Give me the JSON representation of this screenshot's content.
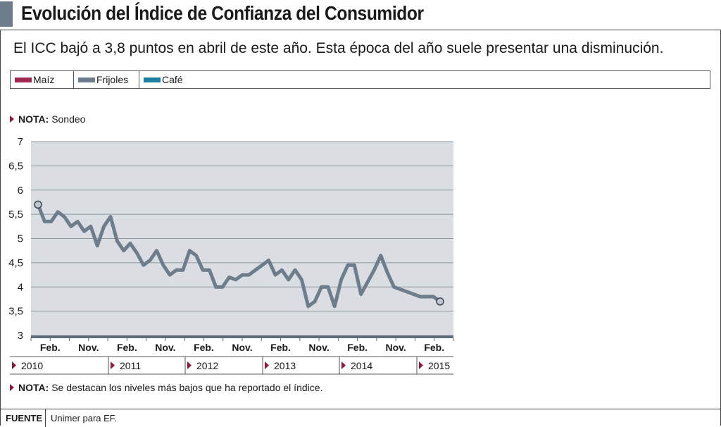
{
  "title": "Evolución del Índice de Confianza del Consumidor",
  "subtitle": "El ICC bajó a 3,8 puntos en abril de este año. Esta época del año suele presentar una disminución.",
  "legend": [
    {
      "label": "Maíz",
      "color": "#a0284f"
    },
    {
      "label": "Frijoles",
      "color": "#6e7d8c"
    },
    {
      "label": "Café",
      "color": "#1b7fa3"
    }
  ],
  "note_top": {
    "key": "NOTA:",
    "text": "Sondeo"
  },
  "note_bottom": {
    "key": "NOTA:",
    "text": "Se destacan los niveles más bajos que ha reportado el índice."
  },
  "source": {
    "key": "FUENTE",
    "text": "Unimer para EF."
  },
  "colors": {
    "line": "#6e7d8c",
    "plot_bg": "#dadde1",
    "axis": "#5a6b7b",
    "accent": "#8b1a3a"
  },
  "chart_data": {
    "type": "line",
    "ylim": [
      3,
      7
    ],
    "yticks": [
      "3",
      "3,5",
      "4",
      "4,5",
      "5",
      "5,5",
      "6",
      "6,5",
      "7"
    ],
    "x_tick_labels": [
      "Feb.",
      "Nov.",
      "Feb.",
      "Nov.",
      "Feb.",
      "Nov.",
      "Feb.",
      "Nov.",
      "Feb.",
      "Nov.",
      "Feb."
    ],
    "years": [
      "2010",
      "2011",
      "2012",
      "2013",
      "2014",
      "2015"
    ],
    "grid": true,
    "series": [
      {
        "color": "#6e7d8c",
        "values": [
          5.7,
          5.35,
          5.35,
          5.55,
          5.45,
          5.25,
          5.35,
          5.15,
          5.25,
          4.85,
          5.25,
          5.45,
          4.95,
          4.75,
          4.9,
          4.7,
          4.45,
          4.55,
          4.75,
          4.45,
          4.25,
          4.35,
          4.35,
          4.75,
          4.65,
          4.35,
          4.35,
          4.0,
          4.0,
          4.2,
          4.15,
          4.25,
          4.25,
          4.35,
          4.45,
          4.55,
          4.25,
          4.35,
          4.15,
          4.35,
          4.15,
          3.6,
          3.7,
          4.0,
          4.0,
          3.6,
          4.15,
          4.45,
          4.45,
          3.85,
          4.1,
          4.35,
          4.65,
          4.3,
          4.0,
          3.95,
          3.9,
          3.85,
          3.8,
          3.8,
          3.8,
          3.7
        ]
      }
    ],
    "highlight_points": [
      0,
      61
    ]
  }
}
